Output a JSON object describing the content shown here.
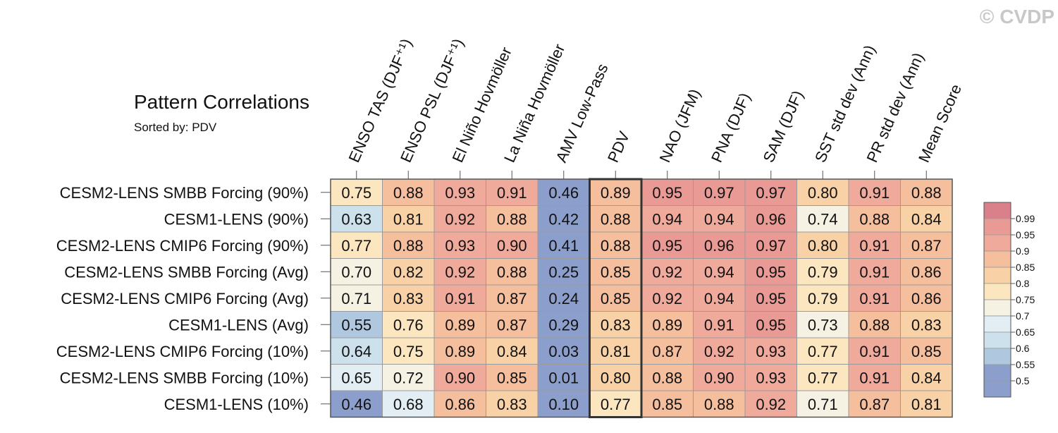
{
  "chart_data": {
    "type": "heatmap",
    "title": "Pattern Correlations",
    "subtitle": "Sorted by: PDV",
    "watermark": "© CVDP",
    "columns": [
      "ENSO TAS (DJF⁺¹)",
      "ENSO PSL (DJF⁺¹)",
      "El Niño Hovmöller",
      "La Niña Hovmöller",
      "AMV Low-Pass",
      "PDV",
      "NAO (JFM)",
      "PNA (DJF)",
      "SAM (DJF)",
      "SST std dev (Ann)",
      "PR std dev (Ann)",
      "Mean Score"
    ],
    "highlighted_column": "PDV",
    "rows": [
      "CESM2-LENS SMBB Forcing (90%)",
      "CESM1-LENS (90%)",
      "CESM2-LENS CMIP6 Forcing (90%)",
      "CESM2-LENS SMBB Forcing (Avg)",
      "CESM2-LENS CMIP6 Forcing (Avg)",
      "CESM1-LENS (Avg)",
      "CESM2-LENS CMIP6 Forcing (10%)",
      "CESM2-LENS SMBB Forcing (10%)",
      "CESM1-LENS (10%)"
    ],
    "values": [
      [
        "0.75",
        "0.88",
        "0.93",
        "0.91",
        "0.46",
        "0.89",
        "0.95",
        "0.97",
        "0.97",
        "0.80",
        "0.91",
        "0.88"
      ],
      [
        "0.63",
        "0.81",
        "0.92",
        "0.88",
        "0.42",
        "0.88",
        "0.94",
        "0.94",
        "0.96",
        "0.74",
        "0.88",
        "0.84"
      ],
      [
        "0.77",
        "0.88",
        "0.93",
        "0.90",
        "0.41",
        "0.88",
        "0.95",
        "0.96",
        "0.97",
        "0.80",
        "0.91",
        "0.87"
      ],
      [
        "0.70",
        "0.82",
        "0.92",
        "0.88",
        "0.25",
        "0.85",
        "0.92",
        "0.94",
        "0.95",
        "0.79",
        "0.91",
        "0.86"
      ],
      [
        "0.71",
        "0.83",
        "0.91",
        "0.87",
        "0.24",
        "0.85",
        "0.92",
        "0.94",
        "0.95",
        "0.79",
        "0.91",
        "0.86"
      ],
      [
        "0.55",
        "0.76",
        "0.89",
        "0.87",
        "0.29",
        "0.83",
        "0.89",
        "0.91",
        "0.95",
        "0.73",
        "0.88",
        "0.83"
      ],
      [
        "0.64",
        "0.75",
        "0.89",
        "0.84",
        "0.03",
        "0.81",
        "0.87",
        "0.92",
        "0.93",
        "0.77",
        "0.91",
        "0.85"
      ],
      [
        "0.65",
        "0.72",
        "0.90",
        "0.85",
        "0.01",
        "0.80",
        "0.88",
        "0.90",
        "0.93",
        "0.77",
        "0.91",
        "0.84"
      ],
      [
        "0.46",
        "0.68",
        "0.86",
        "0.83",
        "0.10",
        "0.77",
        "0.85",
        "0.88",
        "0.92",
        "0.71",
        "0.87",
        "0.81"
      ]
    ],
    "colorbar": {
      "labels": [
        "0.99",
        "0.95",
        "0.9",
        "0.85",
        "0.8",
        "0.75",
        "0.7",
        "0.65",
        "0.6",
        "0.55",
        "0.5"
      ],
      "thresholds": [
        0.99,
        0.95,
        0.9,
        0.85,
        0.8,
        0.75,
        0.7,
        0.65,
        0.6,
        0.55,
        0.5
      ],
      "colors": [
        "#d9808a",
        "#e99a95",
        "#f0aa9c",
        "#f5bf9e",
        "#f8d2a6",
        "#fbe6c0",
        "#f5f1e3",
        "#e2eef4",
        "#cde1ec",
        "#b0c8df",
        "#8c9fcc",
        "#8c9fcc"
      ]
    }
  }
}
